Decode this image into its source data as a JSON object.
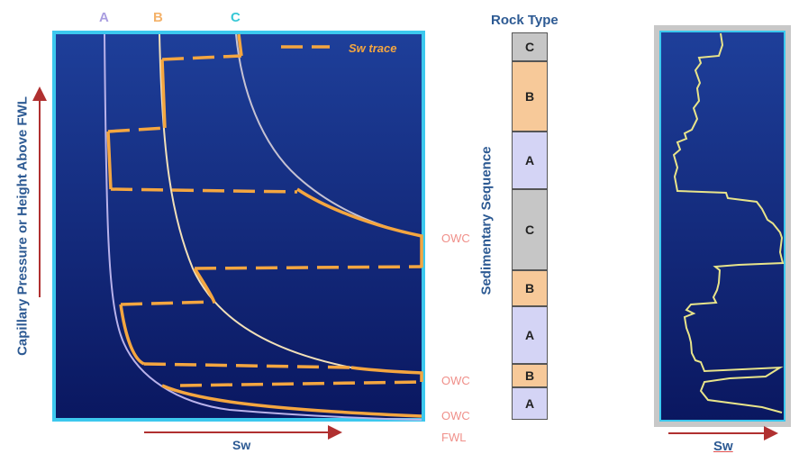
{
  "main_plot": {
    "curve_labels": [
      "A",
      "B",
      "C"
    ],
    "legend_label": "Sw trace",
    "y_axis_label": "Capillary Pressure or Height Above FWL",
    "x_axis_label": "Sw",
    "contact_labels": [
      "OWC",
      "OWC",
      "OWC",
      "FWL"
    ]
  },
  "rock_column": {
    "title": "Rock Type",
    "axis_label": "Sedimentary Sequence",
    "layers": [
      {
        "label": "C",
        "color": "#c6c6c6"
      },
      {
        "label": "B",
        "color": "#f7c999"
      },
      {
        "label": "A",
        "color": "#d4d4f5"
      },
      {
        "label": "C",
        "color": "#c6c6c6"
      },
      {
        "label": "B",
        "color": "#f7c999"
      },
      {
        "label": "A",
        "color": "#d4d4f5"
      },
      {
        "label": "B",
        "color": "#f7c999"
      },
      {
        "label": "A",
        "color": "#d4d4f5"
      }
    ]
  },
  "log_panel": {
    "x_axis_label": "Sw"
  },
  "colors": {
    "plot_top": "#1e3f9a",
    "plot_bottom": "#0a1760",
    "frame": "#3cc8ee",
    "trace": "#f4a640",
    "curve_a": "#b9b2ea",
    "curve_b": "#f2e0b8",
    "curve_c": "#c6c2d2",
    "label_a": "#a99de0",
    "label_b": "#f4b26a",
    "label_c": "#38c8d6",
    "log_line": "#e8e48a",
    "arrow": "#b03030"
  }
}
